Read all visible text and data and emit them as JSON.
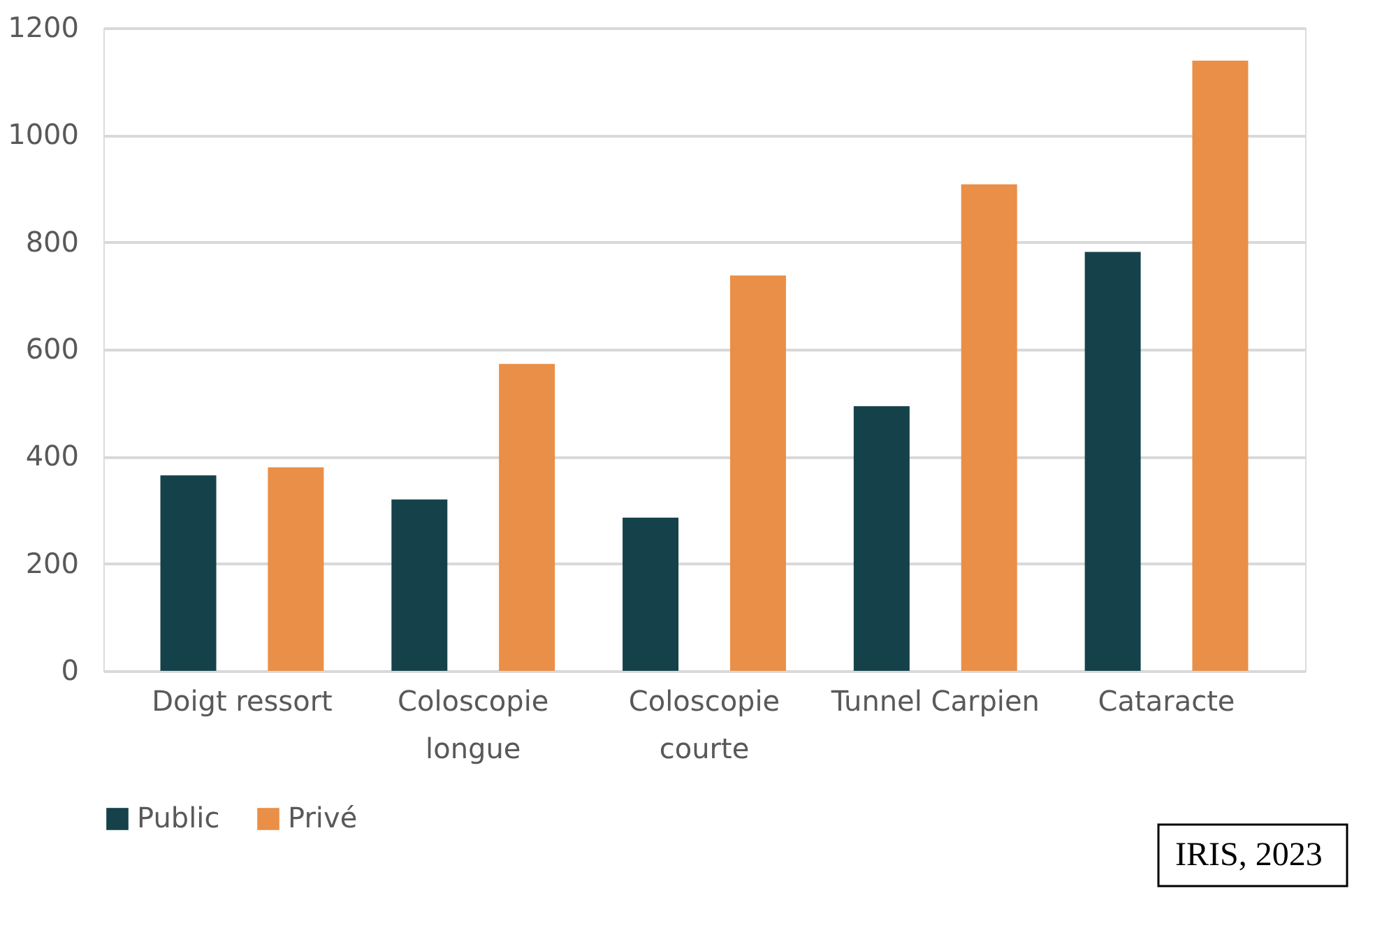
{
  "chart_data": {
    "type": "bar",
    "categories": [
      "Doigt ressort",
      "Coloscopie longue",
      "Coloscopie courte",
      "Tunnel Carpien",
      "Cataracte"
    ],
    "series": [
      {
        "name": "Public",
        "color": "#15424a",
        "values": [
          365,
          320,
          286,
          494,
          782
        ]
      },
      {
        "name": "Privé",
        "color": "#ea8f47",
        "values": [
          380,
          573,
          738,
          908,
          1139
        ]
      }
    ],
    "ylim": [
      0,
      1200
    ],
    "yticks": [
      0,
      200,
      400,
      600,
      800,
      {
        "value": 1000,
        "label": "1000"
      },
      {
        "value": 1200,
        "label": "1200"
      }
    ],
    "grid": "y",
    "legend": "bottom",
    "annotations": [
      "IRIS, 2023"
    ]
  }
}
